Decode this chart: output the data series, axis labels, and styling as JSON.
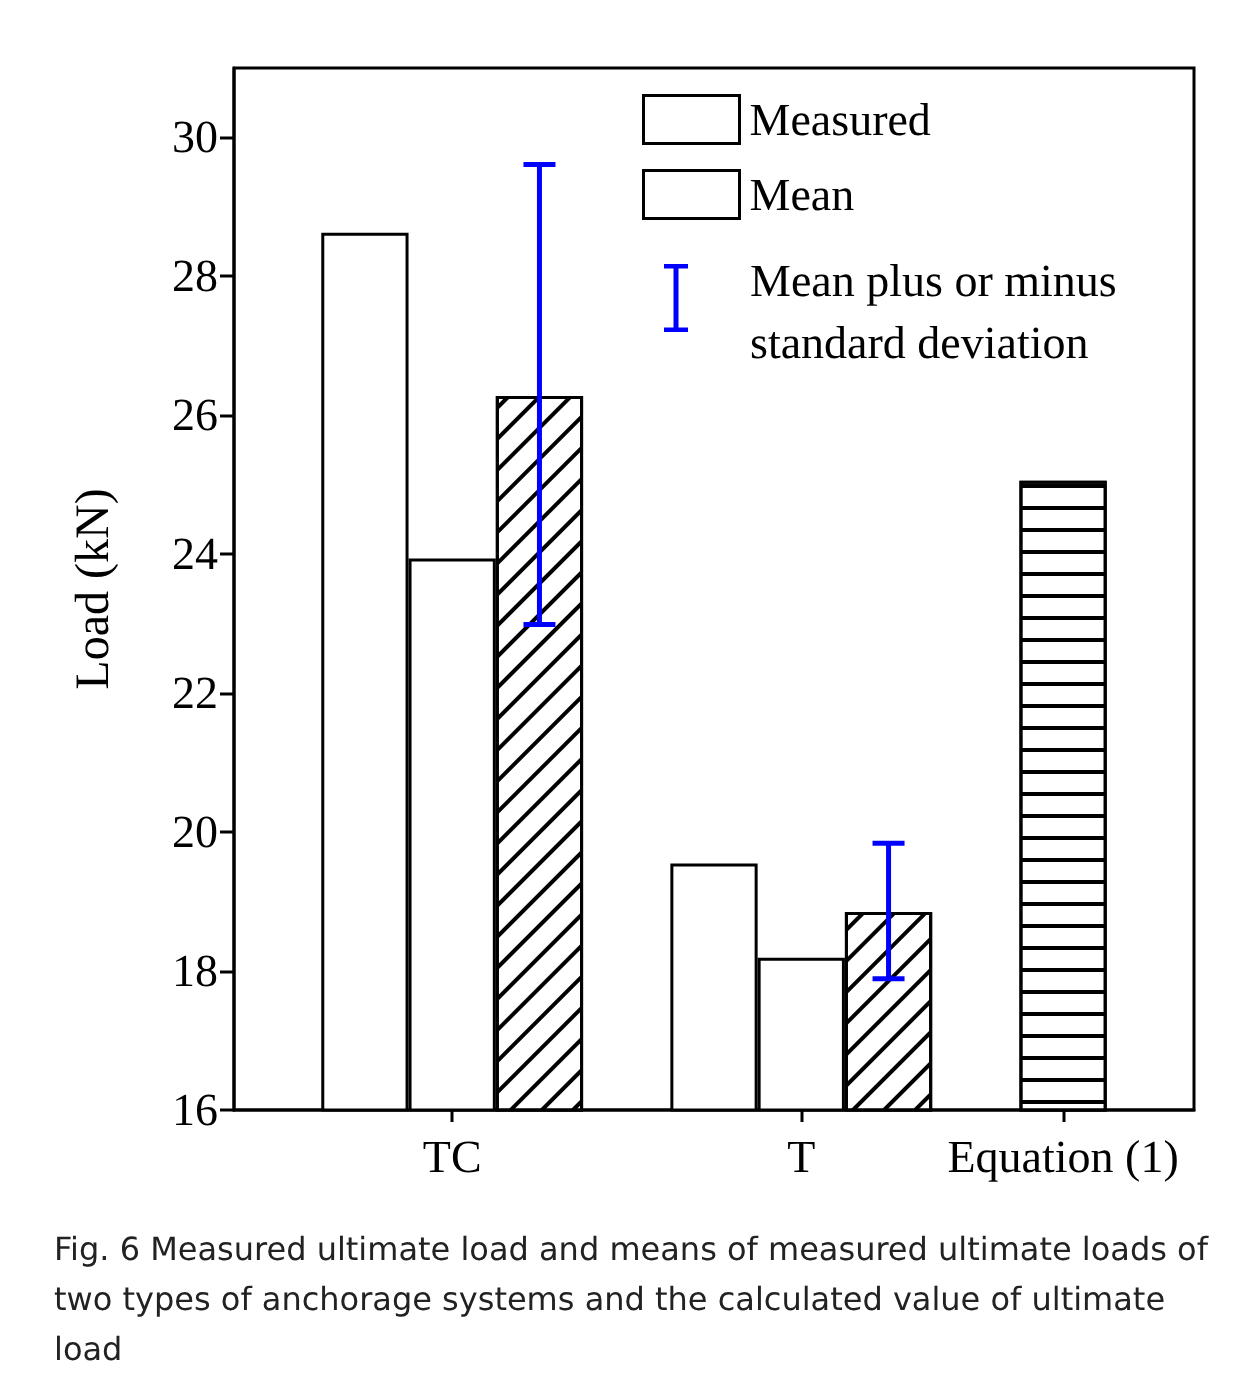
{
  "chart_data": {
    "type": "bar",
    "ylabel": "Load (kN)",
    "categories": [
      null,
      null,
      "TC",
      null,
      null,
      null,
      "T",
      null,
      null,
      "Equation (1)",
      null
    ],
    "series": [
      {
        "name": "Measured",
        "color": "#ffffff",
        "values": [
          null,
          28.63,
          23.94,
          null,
          null,
          19.55,
          18.19,
          null,
          null,
          null,
          null
        ]
      },
      {
        "name": "Mean",
        "color": "#ffffff",
        "values": [
          null,
          null,
          null,
          26.28,
          null,
          null,
          null,
          18.85,
          null,
          null,
          null
        ],
        "errors": [
          null,
          null,
          null,
          [
            22.99,
            29.61
          ],
          null,
          null,
          null,
          [
            17.89,
            19.84
          ],
          null,
          null,
          null
        ]
      },
      {
        "color": "#ffffff",
        "values": [
          null,
          null,
          null,
          null,
          null,
          null,
          null,
          null,
          null,
          25.06,
          null
        ]
      }
    ],
    "ylim": [
      16,
      31
    ],
    "yticks": [
      16,
      18,
      20,
      22,
      24,
      26,
      28,
      30
    ],
    "grid": false,
    "legend": "top right",
    "annotations": [
      "Mean plus or minus standard deviation",
      "Fig. 6 Measured ultimate load and means of measured ultimate loads of two types of anchorage systems and the calculated value of ultimate load"
    ]
  }
}
